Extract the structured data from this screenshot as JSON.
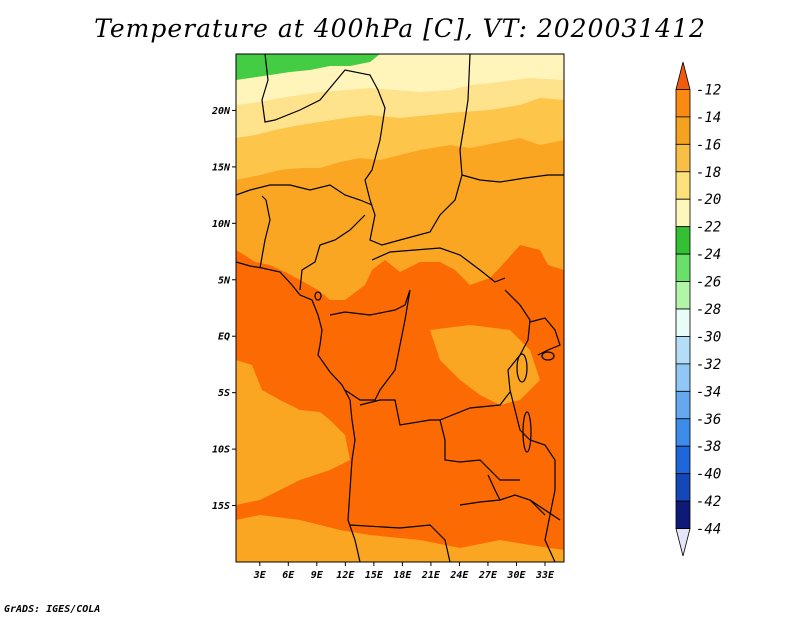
{
  "title": "Temperature at 400hPa [C], VT: 2020031412",
  "credit": "GrADS: IGES/COLA",
  "map": {
    "lon_labels": [
      "3E",
      "6E",
      "9E",
      "12E",
      "15E",
      "18E",
      "21E",
      "24E",
      "27E",
      "30E",
      "33E"
    ],
    "lon_values": [
      3,
      6,
      9,
      12,
      15,
      18,
      21,
      24,
      27,
      30,
      33
    ],
    "lat_labels": [
      "20N",
      "15N",
      "10N",
      "5N",
      "EQ",
      "5S",
      "10S",
      "15S"
    ],
    "lat_values": [
      20,
      15,
      10,
      5,
      0,
      -5,
      -10,
      -15
    ],
    "lon_range": [
      0.5,
      35
    ],
    "lat_range": [
      -20,
      25
    ],
    "fields": {
      "c_22": "#fff5bb",
      "c_20": "#fee28c",
      "c_18": "#fdc54a",
      "c_16": "#fba623",
      "c_14": "#fc6a03",
      "c_24": "#44cc44"
    }
  },
  "colorbar": {
    "labels": [
      "-12",
      "-14",
      "-16",
      "-18",
      "-20",
      "-22",
      "-24",
      "-26",
      "-28",
      "-30",
      "-32",
      "-34",
      "-36",
      "-38",
      "-40",
      "-42",
      "-44"
    ],
    "colors": [
      "#f05a0c",
      "#fa8a12",
      "#f5a220",
      "#f9be45",
      "#fde17a",
      "#fef7bb",
      "#33c033",
      "#69e069",
      "#b2f5a8",
      "#e8fcf8",
      "#b4def8",
      "#90c8f5",
      "#66a8ef",
      "#3c8cea",
      "#1e66dc",
      "#1448b8",
      "#0d1a78",
      "#e4e6f8"
    ]
  }
}
